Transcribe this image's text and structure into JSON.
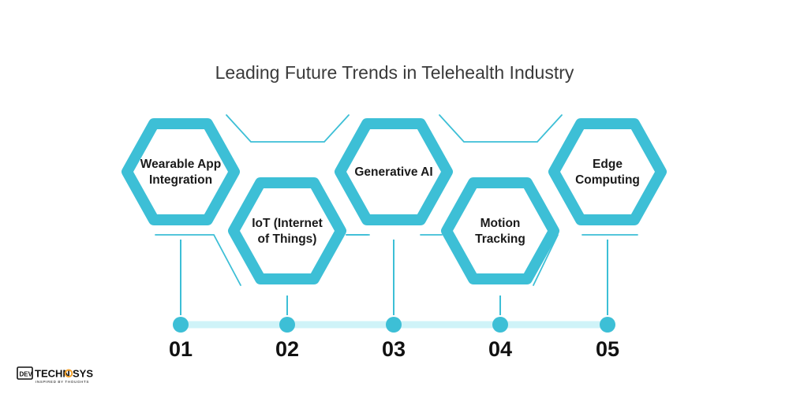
{
  "title": "Leading Future Trends in Telehealth Industry",
  "colors": {
    "accent": "#3dbfd6",
    "timeline": "#cff3f8",
    "text": "#3a3a3a"
  },
  "steps": [
    {
      "number": "01",
      "label_lines": [
        "Wearable App",
        "Integration"
      ]
    },
    {
      "number": "02",
      "label_lines": [
        "IoT (Internet",
        "of Things)"
      ]
    },
    {
      "number": "03",
      "label_lines": [
        "Generative AI"
      ]
    },
    {
      "number": "04",
      "label_lines": [
        "Motion",
        "Tracking"
      ]
    },
    {
      "number": "05",
      "label_lines": [
        "Edge",
        "Computing"
      ]
    }
  ],
  "logo": {
    "part1": "DEV",
    "part2": "TECHN",
    "part3": "SYS",
    "tagline": "INSPIRED BY THOUGHTS"
  }
}
